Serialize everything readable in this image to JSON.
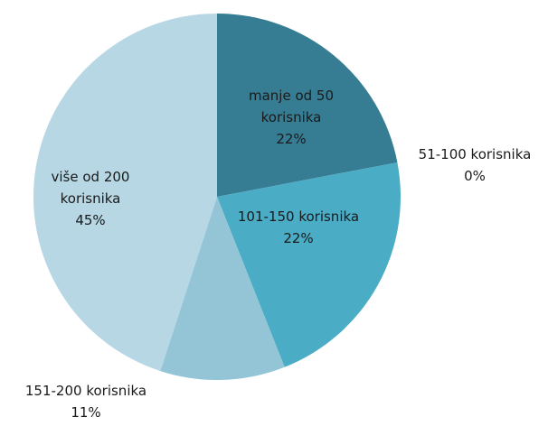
{
  "chart_data": {
    "type": "pie",
    "categories": [
      "manje od 50 korisnika",
      "51-100 korisnika",
      "101-150 korisnika",
      "151-200 korisnika",
      "više od 200 korisnika"
    ],
    "values": [
      22,
      0,
      22,
      11,
      45
    ],
    "value_labels": [
      "22%",
      "0%",
      "22%",
      "11%",
      "45%"
    ],
    "colors": [
      "#367c93",
      "#3f96b0",
      "#4bacc6",
      "#93c5d6",
      "#b7d7e4"
    ]
  }
}
